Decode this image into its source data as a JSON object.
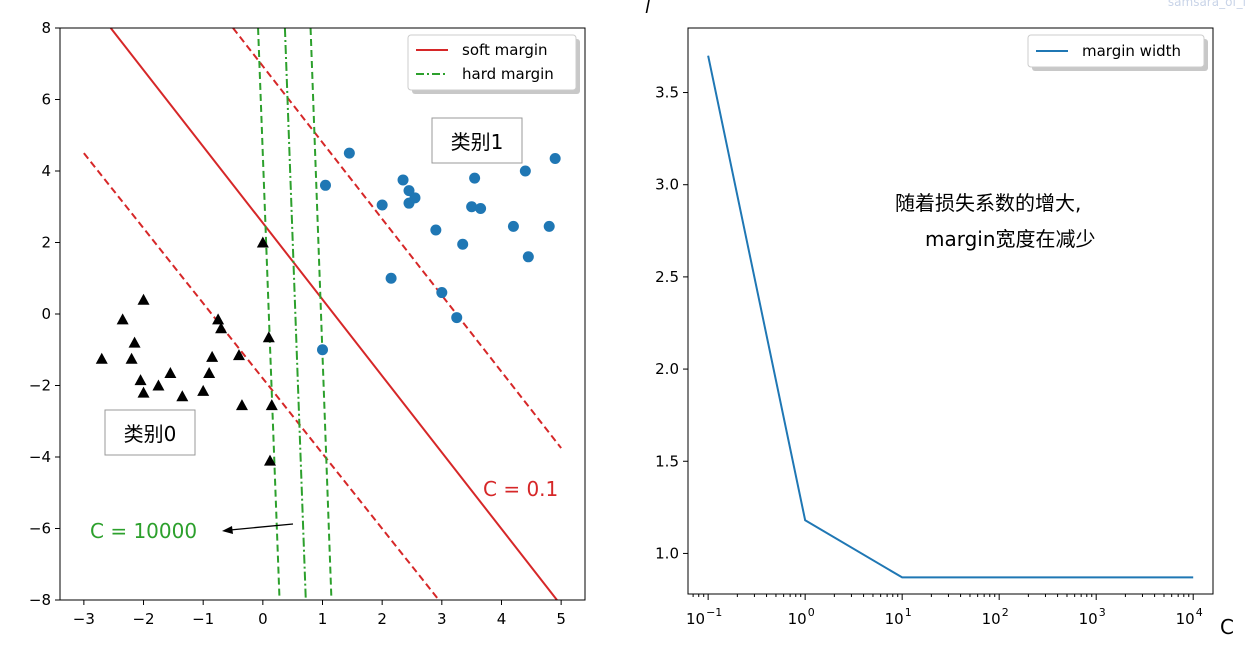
{
  "watermark": "samsara_of_l",
  "chart_data": [
    {
      "type": "scatter",
      "xlim": [
        -3.4,
        5.4
      ],
      "ylim": [
        -8,
        8
      ],
      "x_ticks": [
        -3,
        -2,
        -1,
        0,
        1,
        2,
        3,
        4,
        5
      ],
      "y_ticks": [
        -8,
        -6,
        -4,
        -2,
        0,
        2,
        4,
        6,
        8
      ],
      "grid": false,
      "legend_position": "top-right",
      "series": [
        {
          "name": "soft margin",
          "kind": "line",
          "style": "solid",
          "color": "#d62728"
        },
        {
          "name": "hard margin",
          "kind": "line",
          "style": "dash-dot",
          "color": "#2ca02c"
        }
      ],
      "lines": {
        "soft_center": {
          "points": [
            [
              -2.55,
              8
            ],
            [
              4.93,
              -8
            ]
          ],
          "style": "solid",
          "color": "#d62728"
        },
        "soft_upper": {
          "points": [
            [
              -0.5,
              8
            ],
            [
              5.0,
              -3.75
            ]
          ],
          "style": "dashed",
          "color": "#d62728"
        },
        "soft_lower": {
          "points": [
            [
              -3.0,
              4.5
            ],
            [
              2.95,
              -8
            ]
          ],
          "style": "dashed",
          "color": "#d62728"
        },
        "hard_center": {
          "points": [
            [
              0.37,
              8
            ],
            [
              0.72,
              -8
            ]
          ],
          "style": "dash-dot",
          "color": "#2ca02c"
        },
        "hard_left": {
          "points": [
            [
              -0.08,
              8
            ],
            [
              0.28,
              -8
            ]
          ],
          "style": "dashed",
          "color": "#2ca02c"
        },
        "hard_right": {
          "points": [
            [
              0.8,
              8
            ],
            [
              1.15,
              -8
            ]
          ],
          "style": "dashed",
          "color": "#2ca02c"
        }
      },
      "class0_triangles": [
        [
          -2.7,
          -1.25
        ],
        [
          -2.35,
          -0.15
        ],
        [
          -2.15,
          -0.8
        ],
        [
          -2.2,
          -1.25
        ],
        [
          -2.0,
          0.4
        ],
        [
          -2.05,
          -1.85
        ],
        [
          -2.0,
          -2.2
        ],
        [
          -1.75,
          -2.0
        ],
        [
          -1.55,
          -1.65
        ],
        [
          -1.35,
          -2.3
        ],
        [
          -1.0,
          -2.15
        ],
        [
          -0.9,
          -1.65
        ],
        [
          -0.85,
          -1.2
        ],
        [
          -0.75,
          -0.15
        ],
        [
          -0.7,
          -0.4
        ],
        [
          -0.4,
          -1.15
        ],
        [
          -0.35,
          -2.55
        ],
        [
          0.0,
          2.0
        ],
        [
          0.1,
          -0.65
        ],
        [
          0.15,
          -2.55
        ],
        [
          0.12,
          -4.1
        ]
      ],
      "class1_points": [
        [
          1.0,
          -1.0
        ],
        [
          1.05,
          3.6
        ],
        [
          1.45,
          4.5
        ],
        [
          2.0,
          3.05
        ],
        [
          2.15,
          1.0
        ],
        [
          2.35,
          3.75
        ],
        [
          2.45,
          3.45
        ],
        [
          2.45,
          3.1
        ],
        [
          2.55,
          3.25
        ],
        [
          2.9,
          2.35
        ],
        [
          3.0,
          0.6
        ],
        [
          3.25,
          -0.1
        ],
        [
          3.35,
          1.95
        ],
        [
          3.5,
          3.0
        ],
        [
          3.55,
          3.8
        ],
        [
          3.65,
          2.95
        ],
        [
          4.2,
          2.45
        ],
        [
          4.4,
          4.0
        ],
        [
          4.45,
          1.6
        ],
        [
          4.8,
          2.45
        ],
        [
          4.9,
          4.35
        ]
      ],
      "labels": {
        "class1": "类别1",
        "class0": "类别0",
        "c_soft": "C = 0.1",
        "c_hard": "C = 10000"
      },
      "colors": {
        "class0": "#000000",
        "class1": "#1f77b4",
        "soft": "#d62728",
        "hard": "#2ca02c"
      }
    },
    {
      "type": "line",
      "x_scale": "log",
      "xlabel": "C",
      "ylabel": "l",
      "x": [
        0.1,
        1,
        10,
        100,
        1000,
        10000
      ],
      "series": [
        {
          "name": "margin width",
          "values": [
            3.7,
            1.18,
            0.87,
            0.87,
            0.87,
            0.87
          ],
          "color": "#1f77b4"
        }
      ],
      "xlim": [
        0.062,
        16000
      ],
      "ylim": [
        0.78,
        3.85
      ],
      "y_ticks": [
        1.0,
        1.5,
        2.0,
        2.5,
        3.0,
        3.5
      ],
      "y_tick_labels": [
        "1.0",
        "1.5",
        "2.0",
        "2.5",
        "3.0",
        "3.5"
      ],
      "x_ticks": [
        0.1,
        1,
        10,
        100,
        1000,
        10000
      ],
      "x_tick_bases": [
        "10",
        "10",
        "10",
        "10",
        "10",
        "10"
      ],
      "x_tick_exps": [
        "−1",
        "0",
        "1",
        "2",
        "3",
        "4"
      ],
      "grid": false,
      "legend_position": "top-right",
      "annotation": [
        "随着损失系数的增大,",
        "margin宽度在减少"
      ]
    }
  ]
}
